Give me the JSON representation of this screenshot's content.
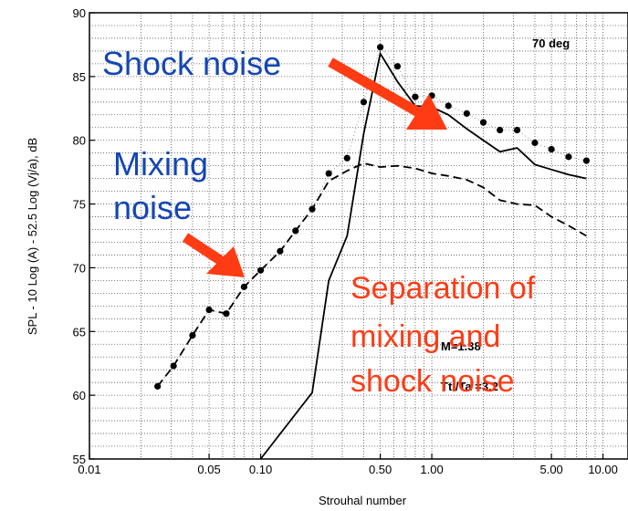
{
  "chart_data": {
    "type": "line",
    "xscale": "log",
    "xlim": [
      0.01,
      14
    ],
    "ylim": [
      55,
      90
    ],
    "xlabel": "Strouhal number",
    "ylabel": "SPL - 10 Log (A) - 52.5 Log (Vj/a), dB",
    "grid": true,
    "xticks": [
      {
        "v": 0.01,
        "label": "0.01"
      },
      {
        "v": 0.05,
        "label": "0.05"
      },
      {
        "v": 0.1,
        "label": "0.10"
      },
      {
        "v": 0.5,
        "label": "0.50"
      },
      {
        "v": 1.0,
        "label": "1.00"
      },
      {
        "v": 5.0,
        "label": "5.00"
      },
      {
        "v": 10.0,
        "label": "10.00"
      }
    ],
    "yticks": [
      55,
      60,
      65,
      70,
      75,
      80,
      85,
      90
    ],
    "series": [
      {
        "style": "dotted-markers",
        "color": "#000000",
        "points": [
          [
            0.025,
            60.7
          ],
          [
            0.031,
            62.3
          ],
          [
            0.04,
            64.7
          ],
          [
            0.05,
            66.7
          ],
          [
            0.063,
            66.4
          ],
          [
            0.08,
            68.5
          ],
          [
            0.1,
            69.8
          ],
          [
            0.13,
            71.3
          ],
          [
            0.16,
            72.9
          ],
          [
            0.2,
            74.6
          ],
          [
            0.25,
            77.4
          ],
          [
            0.32,
            78.6
          ],
          [
            0.4,
            83.0
          ],
          [
            0.5,
            87.3
          ],
          [
            0.63,
            85.8
          ],
          [
            0.8,
            83.4
          ],
          [
            1.0,
            83.5
          ],
          [
            1.25,
            82.7
          ],
          [
            1.6,
            82.1
          ],
          [
            2.0,
            81.4
          ],
          [
            2.5,
            80.8
          ],
          [
            3.15,
            80.8
          ],
          [
            4.0,
            79.8
          ],
          [
            5.0,
            79.3
          ],
          [
            6.3,
            78.7
          ],
          [
            8.0,
            78.4
          ]
        ]
      },
      {
        "style": "dashed",
        "color": "#000000",
        "points": [
          [
            0.025,
            60.7
          ],
          [
            0.031,
            62.3
          ],
          [
            0.04,
            64.7
          ],
          [
            0.05,
            66.7
          ],
          [
            0.063,
            66.4
          ],
          [
            0.08,
            68.5
          ],
          [
            0.1,
            69.8
          ],
          [
            0.13,
            71.3
          ],
          [
            0.16,
            72.9
          ],
          [
            0.2,
            74.6
          ],
          [
            0.25,
            76.8
          ],
          [
            0.32,
            77.6
          ],
          [
            0.4,
            78.2
          ],
          [
            0.5,
            77.9
          ],
          [
            0.63,
            78.0
          ],
          [
            0.8,
            77.8
          ],
          [
            1.0,
            77.4
          ],
          [
            1.25,
            77.2
          ],
          [
            1.6,
            76.9
          ],
          [
            2.0,
            76.3
          ],
          [
            2.5,
            75.3
          ],
          [
            3.15,
            75.0
          ],
          [
            4.0,
            74.9
          ],
          [
            5.0,
            74.0
          ],
          [
            6.3,
            73.3
          ],
          [
            8.0,
            72.5
          ]
        ]
      },
      {
        "style": "solid",
        "color": "#000000",
        "points": [
          [
            0.1,
            55.0
          ],
          [
            0.2,
            60.2
          ],
          [
            0.25,
            69.0
          ],
          [
            0.32,
            72.5
          ],
          [
            0.4,
            80.5
          ],
          [
            0.5,
            86.8
          ],
          [
            0.63,
            84.6
          ],
          [
            0.8,
            82.7
          ],
          [
            1.0,
            82.6
          ],
          [
            1.25,
            82.0
          ],
          [
            1.6,
            80.9
          ],
          [
            2.0,
            80.0
          ],
          [
            2.5,
            79.1
          ],
          [
            3.15,
            79.4
          ],
          [
            4.0,
            78.1
          ],
          [
            5.0,
            77.7
          ],
          [
            6.3,
            77.3
          ],
          [
            8.0,
            77.0
          ]
        ]
      }
    ],
    "annotations": {
      "angle": "70 deg",
      "mach": "M=1.38",
      "temp": "Tt /Ta =3.2"
    }
  },
  "labels": {
    "shock_noise": "Shock noise",
    "mixing_line1": "Mixing",
    "mixing_line2": "noise",
    "separation_line1": "Separation of",
    "separation_line2": "mixing and",
    "separation_line3": "shock noise"
  },
  "colors": {
    "arrow": "#ff3b14",
    "blue_text": "#1446b4",
    "red_text": "#ff3b14"
  }
}
